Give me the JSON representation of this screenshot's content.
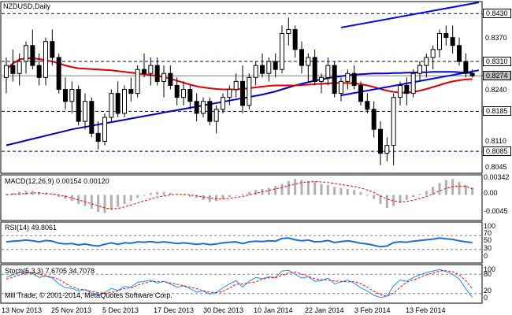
{
  "window": {
    "symbol_label": "NZDUSD,Daily"
  },
  "price_panel": {
    "levels": [
      {
        "value": "0.8430",
        "boxed": true,
        "color": "#000000",
        "bg": "#ffffff"
      },
      {
        "value": "0.8370",
        "boxed": false
      },
      {
        "value": "0.8310",
        "boxed": true,
        "color": "#000000",
        "bg": "#ffffff"
      },
      {
        "value": "0.8274",
        "boxed": true,
        "color": "#000000",
        "bg": "#c0c0c0"
      },
      {
        "value": "0.8240",
        "boxed": false
      },
      {
        "value": "0.8185",
        "boxed": true,
        "color": "#000000",
        "bg": "#ffffff"
      },
      {
        "value": "0.8110",
        "boxed": false
      },
      {
        "value": "0.8085",
        "boxed": true,
        "color": "#000000",
        "bg": "#ffffff"
      },
      {
        "value": "0.8045",
        "boxed": false
      }
    ]
  },
  "macd_panel": {
    "label": "MACD(12,26,9) 0.00154 0.00120",
    "ticks": [
      "0.00342",
      "0.00",
      "-0.0045"
    ]
  },
  "rsi_panel": {
    "label": "RSI(14) 49.8061",
    "ticks": [
      "100",
      "70",
      "50",
      "30",
      "0"
    ]
  },
  "stoch_panel": {
    "label": "Stoch(5,3,3) 7.6705 34.7078",
    "ticks": [
      "100",
      "80",
      "20",
      "0"
    ],
    "watermark": "Mill Trade, © 2001-2014, MetaQuotes Software Corp."
  },
  "time_axis": [
    "13 Nov 2013",
    "25 Nov 2013",
    "5 Dec 2013",
    "17 Dec 2013",
    "30 Dec 2013",
    "10 Jan 2014",
    "22 Jan 2014",
    "3 Feb 2014",
    "13 Feb 2014"
  ],
  "colors": {
    "bull_candle": "#ffffff",
    "bear_candle": "#000000",
    "ma_red": "#e00000",
    "ma_blue": "#0000c8",
    "channel": "#0000ff",
    "macd_hist": "#b0b0b0",
    "macd_signal": "#ff0000",
    "rsi_line": "#1e6fd0",
    "stoch_main": "#1e90ff",
    "stoch_signal": "#ff0000",
    "level_dash": "#000080"
  },
  "chart_data": {
    "type": "candlestick",
    "symbol": "NZDUSD",
    "timeframe": "Daily",
    "ylim": [
      0.803,
      0.846
    ],
    "candles": [
      [
        0.827,
        0.832,
        0.823,
        0.83
      ],
      [
        0.83,
        0.834,
        0.826,
        0.828
      ],
      [
        0.828,
        0.833,
        0.825,
        0.831
      ],
      [
        0.831,
        0.836,
        0.828,
        0.835
      ],
      [
        0.835,
        0.839,
        0.829,
        0.83
      ],
      [
        0.83,
        0.833,
        0.825,
        0.827
      ],
      [
        0.827,
        0.837,
        0.825,
        0.836
      ],
      [
        0.836,
        0.839,
        0.83,
        0.832
      ],
      [
        0.832,
        0.833,
        0.823,
        0.824
      ],
      [
        0.824,
        0.827,
        0.819,
        0.821
      ],
      [
        0.821,
        0.826,
        0.818,
        0.824
      ],
      [
        0.824,
        0.825,
        0.815,
        0.816
      ],
      [
        0.816,
        0.823,
        0.814,
        0.821
      ],
      [
        0.821,
        0.822,
        0.812,
        0.813
      ],
      [
        0.813,
        0.816,
        0.809,
        0.811
      ],
      [
        0.811,
        0.818,
        0.81,
        0.817
      ],
      [
        0.817,
        0.824,
        0.816,
        0.823
      ],
      [
        0.823,
        0.826,
        0.817,
        0.818
      ],
      [
        0.818,
        0.825,
        0.817,
        0.824
      ],
      [
        0.824,
        0.827,
        0.821,
        0.823
      ],
      [
        0.823,
        0.83,
        0.822,
        0.829
      ],
      [
        0.829,
        0.833,
        0.827,
        0.828
      ],
      [
        0.828,
        0.832,
        0.825,
        0.83
      ],
      [
        0.83,
        0.832,
        0.825,
        0.826
      ],
      [
        0.826,
        0.83,
        0.822,
        0.828
      ],
      [
        0.828,
        0.83,
        0.824,
        0.825
      ],
      [
        0.825,
        0.827,
        0.82,
        0.822
      ],
      [
        0.822,
        0.826,
        0.82,
        0.824
      ],
      [
        0.824,
        0.825,
        0.819,
        0.821
      ],
      [
        0.821,
        0.823,
        0.816,
        0.818
      ],
      [
        0.818,
        0.822,
        0.817,
        0.821
      ],
      [
        0.821,
        0.822,
        0.815,
        0.816
      ],
      [
        0.816,
        0.82,
        0.813,
        0.819
      ],
      [
        0.819,
        0.823,
        0.818,
        0.822
      ],
      [
        0.822,
        0.825,
        0.82,
        0.824
      ],
      [
        0.824,
        0.828,
        0.822,
        0.826
      ],
      [
        0.826,
        0.83,
        0.818,
        0.82
      ],
      [
        0.82,
        0.828,
        0.819,
        0.827
      ],
      [
        0.827,
        0.831,
        0.825,
        0.83
      ],
      [
        0.83,
        0.833,
        0.827,
        0.828
      ],
      [
        0.828,
        0.832,
        0.826,
        0.831
      ],
      [
        0.831,
        0.833,
        0.827,
        0.829
      ],
      [
        0.829,
        0.84,
        0.828,
        0.838
      ],
      [
        0.838,
        0.842,
        0.835,
        0.839
      ],
      [
        0.839,
        0.84,
        0.832,
        0.834
      ],
      [
        0.834,
        0.836,
        0.828,
        0.83
      ],
      [
        0.83,
        0.833,
        0.826,
        0.832
      ],
      [
        0.832,
        0.834,
        0.825,
        0.826
      ],
      [
        0.826,
        0.828,
        0.823,
        0.827
      ],
      [
        0.827,
        0.832,
        0.825,
        0.83
      ],
      [
        0.83,
        0.831,
        0.822,
        0.823
      ],
      [
        0.823,
        0.827,
        0.821,
        0.826
      ],
      [
        0.826,
        0.829,
        0.824,
        0.828
      ],
      [
        0.828,
        0.83,
        0.824,
        0.825
      ],
      [
        0.825,
        0.826,
        0.82,
        0.821
      ],
      [
        0.821,
        0.823,
        0.818,
        0.819
      ],
      [
        0.819,
        0.821,
        0.812,
        0.814
      ],
      [
        0.814,
        0.816,
        0.805,
        0.808
      ],
      [
        0.808,
        0.812,
        0.806,
        0.81
      ],
      [
        0.81,
        0.823,
        0.805,
        0.822
      ],
      [
        0.822,
        0.826,
        0.82,
        0.825
      ],
      [
        0.825,
        0.827,
        0.82,
        0.823
      ],
      [
        0.823,
        0.829,
        0.822,
        0.828
      ],
      [
        0.828,
        0.831,
        0.826,
        0.83
      ],
      [
        0.83,
        0.833,
        0.827,
        0.832
      ],
      [
        0.832,
        0.835,
        0.829,
        0.834
      ],
      [
        0.834,
        0.839,
        0.832,
        0.838
      ],
      [
        0.838,
        0.84,
        0.835,
        0.837
      ],
      [
        0.837,
        0.84,
        0.833,
        0.835
      ],
      [
        0.835,
        0.837,
        0.83,
        0.831
      ],
      [
        0.831,
        0.833,
        0.827,
        0.828
      ],
      [
        0.828,
        0.829,
        0.827,
        0.8274
      ]
    ],
    "ma_red": [
      0.829,
      0.8305,
      0.8315,
      0.8318,
      0.8318,
      0.8316,
      0.8313,
      0.831,
      0.8305,
      0.83,
      0.8296,
      0.8293,
      0.8292,
      0.8291,
      0.829,
      0.8289,
      0.8288,
      0.8286,
      0.8284,
      0.8282,
      0.828,
      0.8278,
      0.8276,
      0.8274,
      0.8271,
      0.8267,
      0.8262,
      0.8257,
      0.8252,
      0.8248,
      0.8245,
      0.8243,
      0.8241,
      0.824,
      0.824,
      0.824,
      0.8241,
      0.8243,
      0.8245,
      0.8247,
      0.8249,
      0.825,
      0.825,
      0.825,
      0.825,
      0.8251,
      0.8252,
      0.8253,
      0.8254,
      0.8255,
      0.8256,
      0.8256,
      0.8256,
      0.8255,
      0.8253,
      0.825,
      0.8246,
      0.8241,
      0.8237,
      0.8234,
      0.8232,
      0.8232,
      0.8234,
      0.8237,
      0.8241,
      0.8246,
      0.8251,
      0.8256,
      0.826,
      0.8263,
      0.8265,
      0.8266
    ],
    "ma_blue": [
      0.81,
      0.8104,
      0.8108,
      0.8112,
      0.8116,
      0.812,
      0.8124,
      0.8128,
      0.8132,
      0.8136,
      0.814,
      0.8143,
      0.8146,
      0.8149,
      0.8152,
      0.8155,
      0.8158,
      0.8161,
      0.8164,
      0.8167,
      0.817,
      0.8173,
      0.8176,
      0.8179,
      0.8182,
      0.8185,
      0.8188,
      0.8191,
      0.8194,
      0.8197,
      0.82,
      0.8203,
      0.8206,
      0.8209,
      0.8212,
      0.8215,
      0.8218,
      0.8221,
      0.8224,
      0.8227,
      0.8231,
      0.8235,
      0.824,
      0.8245,
      0.825,
      0.8254,
      0.8258,
      0.8262,
      0.8265,
      0.8268,
      0.8271,
      0.8273,
      0.8275,
      0.8277,
      0.8278,
      0.8279,
      0.828,
      0.828,
      0.828,
      0.8281,
      0.8281,
      0.8282,
      0.8282,
      0.8283,
      0.8283,
      0.8284,
      0.8284,
      0.8284,
      0.8284,
      0.8283,
      0.8282,
      0.8281
    ],
    "channel_upper": [
      [
        51,
        0.8395
      ],
      [
        72,
        0.8458
      ]
    ],
    "channel_lower": [
      [
        51,
        0.8225
      ],
      [
        72,
        0.8288
      ]
    ],
    "macd_hist": [
      0.0002,
      0.0004,
      0.0006,
      0.0008,
      0.0008,
      0.0006,
      0.0004,
      0.0002,
      -0.0004,
      -0.0008,
      -0.0012,
      -0.0018,
      -0.0022,
      -0.0028,
      -0.0034,
      -0.0036,
      -0.003,
      -0.0024,
      -0.0018,
      -0.0012,
      -0.0006,
      0.0,
      0.0004,
      0.0006,
      0.0006,
      0.0004,
      0.0002,
      0.0,
      -0.0004,
      -0.0006,
      -0.001,
      -0.0014,
      -0.0012,
      -0.0008,
      -0.0004,
      0.0,
      0.0002,
      0.0006,
      0.001,
      0.0012,
      0.0014,
      0.0018,
      0.0022,
      0.0028,
      0.0032,
      0.003,
      0.0028,
      0.0026,
      0.0022,
      0.002,
      0.0016,
      0.0014,
      0.0012,
      0.001,
      0.0006,
      0.0,
      -0.0008,
      -0.0018,
      -0.0026,
      -0.0022,
      -0.0016,
      -0.001,
      -0.0004,
      0.0002,
      0.0008,
      0.0016,
      0.0024,
      0.003,
      0.0032,
      0.0026,
      0.002,
      0.0015
    ],
    "macd_signal": [
      0.0,
      0.0001,
      0.0002,
      0.0003,
      0.0004,
      0.0004,
      0.0003,
      0.0002,
      0.0,
      -0.0003,
      -0.0006,
      -0.001,
      -0.0014,
      -0.0018,
      -0.0022,
      -0.0026,
      -0.0028,
      -0.0027,
      -0.0024,
      -0.002,
      -0.0016,
      -0.0012,
      -0.0008,
      -0.0004,
      -0.0002,
      0.0,
      0.0001,
      0.0001,
      0.0,
      -0.0002,
      -0.0004,
      -0.0006,
      -0.0008,
      -0.0008,
      -0.0007,
      -0.0005,
      -0.0003,
      0.0,
      0.0003,
      0.0006,
      0.0009,
      0.0012,
      0.0015,
      0.0019,
      0.0022,
      0.0025,
      0.0026,
      0.0027,
      0.0026,
      0.0025,
      0.0023,
      0.0021,
      0.0019,
      0.0017,
      0.0014,
      0.001,
      0.0005,
      -0.0002,
      -0.0008,
      -0.0012,
      -0.0014,
      -0.0013,
      -0.0011,
      -0.0007,
      -0.0003,
      0.0002,
      0.0008,
      0.0013,
      0.0017,
      0.0018,
      0.0017,
      0.0012
    ],
    "rsi": [
      52,
      54,
      55,
      57,
      55,
      52,
      56,
      54,
      48,
      46,
      47,
      43,
      46,
      42,
      40,
      45,
      49,
      45,
      49,
      48,
      52,
      51,
      53,
      50,
      52,
      50,
      47,
      49,
      47,
      45,
      47,
      44,
      46,
      49,
      51,
      52,
      47,
      52,
      54,
      53,
      55,
      54,
      62,
      63,
      58,
      55,
      57,
      52,
      53,
      56,
      50,
      53,
      55,
      52,
      48,
      46,
      42,
      38,
      40,
      50,
      52,
      51,
      54,
      56,
      58,
      60,
      63,
      61,
      59,
      55,
      52,
      50
    ],
    "stoch_main": [
      70,
      78,
      85,
      88,
      82,
      70,
      74,
      68,
      50,
      38,
      36,
      28,
      32,
      22,
      15,
      22,
      36,
      30,
      42,
      40,
      55,
      58,
      62,
      52,
      58,
      50,
      40,
      44,
      35,
      25,
      28,
      18,
      24,
      38,
      50,
      60,
      40,
      58,
      70,
      66,
      72,
      70,
      90,
      92,
      80,
      68,
      72,
      58,
      60,
      68,
      50,
      56,
      62,
      52,
      38,
      28,
      15,
      8,
      12,
      45,
      62,
      58,
      70,
      78,
      85,
      90,
      95,
      88,
      80,
      65,
      35,
      8
    ],
    "stoch_signal": [
      65,
      70,
      78,
      84,
      85,
      80,
      75,
      71,
      64,
      52,
      41,
      34,
      32,
      27,
      23,
      20,
      24,
      29,
      36,
      37,
      46,
      52,
      58,
      57,
      57,
      53,
      49,
      45,
      40,
      35,
      29,
      24,
      23,
      27,
      37,
      49,
      50,
      53,
      56,
      65,
      69,
      69,
      77,
      84,
      87,
      80,
      73,
      66,
      63,
      62,
      59,
      58,
      56,
      57,
      51,
      39,
      27,
      17,
      12,
      22,
      40,
      55,
      63,
      69,
      78,
      84,
      90,
      91,
      88,
      78,
      60,
      35
    ]
  }
}
